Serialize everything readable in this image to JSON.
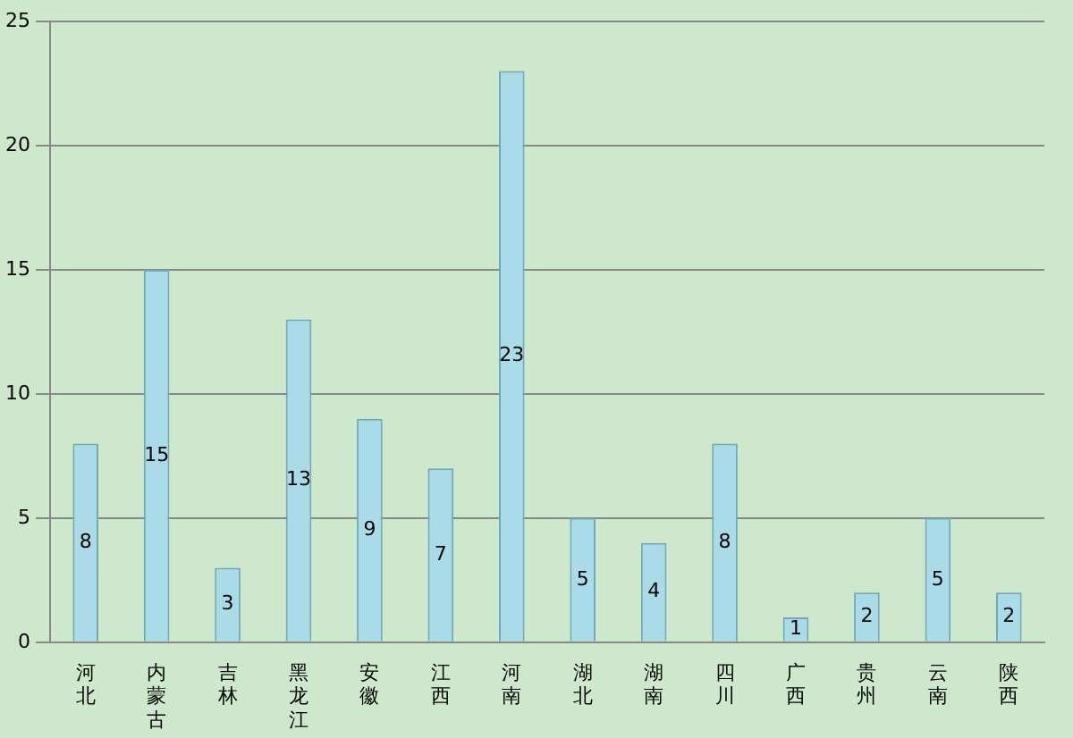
{
  "chart_data": {
    "type": "bar",
    "categories": [
      "河北",
      "内蒙古",
      "吉林",
      "黑龙江",
      "安徽",
      "江西",
      "河南",
      "湖北",
      "湖南",
      "四川",
      "广西",
      "贵州",
      "云南",
      "陕西"
    ],
    "values": [
      8,
      15,
      3,
      13,
      9,
      7,
      23,
      5,
      4,
      8,
      1,
      2,
      5,
      2
    ],
    "color": "#a9dce8",
    "ylim": [
      0,
      25
    ],
    "yticks": [
      0,
      5,
      10,
      15,
      20,
      25
    ],
    "grid": "y",
    "data_labels": true
  }
}
